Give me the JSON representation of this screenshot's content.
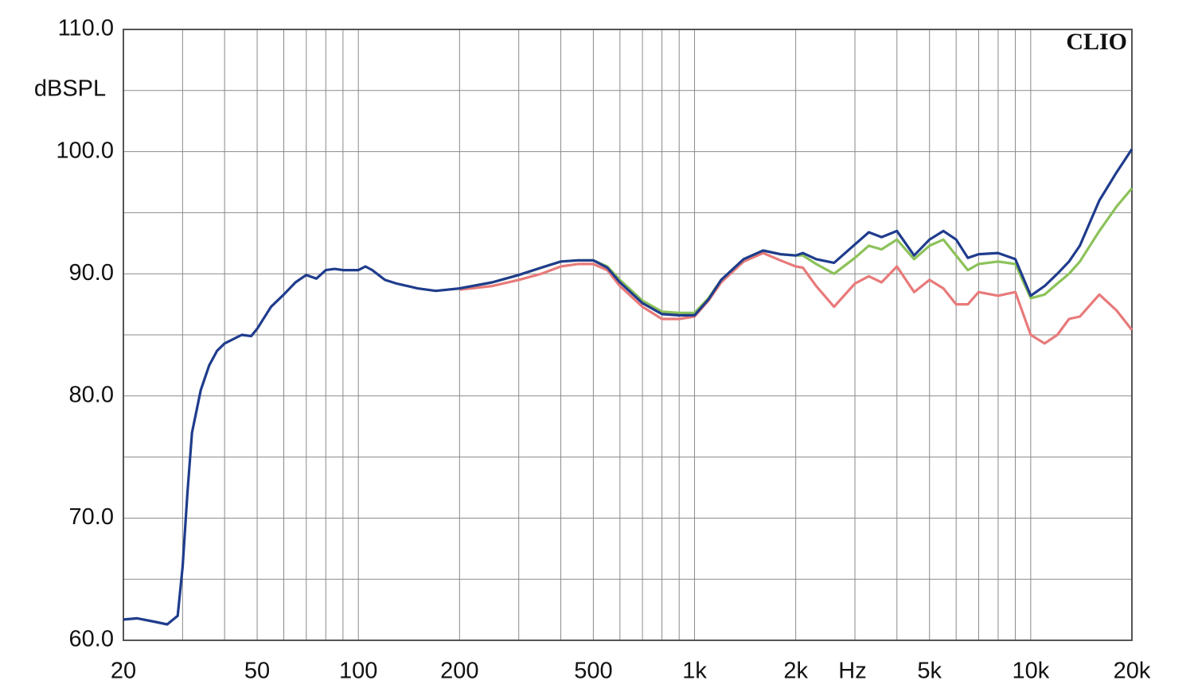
{
  "chart_data": {
    "type": "line",
    "y_label": "dBSPL",
    "x_label": "Hz",
    "annotation": "CLIO",
    "log_x": true,
    "grid": true,
    "xlim": [
      20,
      20000
    ],
    "ylim": [
      60,
      110
    ],
    "xticks": [
      20,
      50,
      100,
      200,
      500,
      {
        "value": 1000,
        "label": "1k"
      },
      {
        "value": 2000,
        "label": "2k"
      },
      {
        "value": 5000,
        "label": "5k"
      },
      {
        "value": 10000,
        "label": "10k"
      },
      {
        "value": 20000,
        "label": "20k"
      }
    ],
    "xminorticks": [
      30,
      40,
      60,
      70,
      80,
      90,
      300,
      400,
      600,
      700,
      800,
      900,
      3000,
      4000,
      6000,
      7000,
      8000,
      9000
    ],
    "yticks": [
      {
        "value": 60,
        "label": "60.0"
      },
      {
        "value": 70,
        "label": "70.0"
      },
      {
        "value": 80,
        "label": "80.0"
      },
      {
        "value": 90,
        "label": "90.0"
      },
      {
        "value": 100,
        "label": "100.0"
      },
      {
        "value": 110,
        "label": "110.0"
      }
    ],
    "yminorticks": [
      65,
      75,
      85,
      95,
      105
    ],
    "x": [
      20,
      22,
      25,
      27,
      29,
      30,
      31,
      32,
      34,
      36,
      38,
      40,
      45,
      48,
      50,
      55,
      60,
      65,
      70,
      75,
      80,
      85,
      90,
      100,
      105,
      110,
      120,
      130,
      140,
      150,
      170,
      200,
      250,
      300,
      350,
      400,
      450,
      500,
      550,
      600,
      700,
      800,
      900,
      1000,
      1100,
      1200,
      1400,
      1600,
      1800,
      2000,
      2100,
      2300,
      2600,
      3000,
      3300,
      3600,
      4000,
      4500,
      5000,
      5500,
      6000,
      6500,
      7000,
      8000,
      9000,
      10000,
      11000,
      12000,
      13000,
      14000,
      16000,
      18000,
      20000
    ],
    "series": [
      {
        "color": "#e87a7a",
        "values": [
          null,
          null,
          null,
          null,
          null,
          null,
          null,
          null,
          null,
          null,
          null,
          null,
          null,
          null,
          null,
          null,
          null,
          null,
          null,
          null,
          null,
          null,
          null,
          null,
          null,
          null,
          null,
          null,
          null,
          null,
          null,
          88.7,
          89.0,
          89.5,
          90.0,
          90.6,
          90.8,
          90.8,
          90.3,
          89.0,
          87.3,
          86.3,
          86.3,
          86.5,
          87.8,
          89.3,
          91.0,
          91.7,
          91.1,
          90.6,
          90.5,
          89.0,
          87.3,
          89.2,
          89.8,
          89.3,
          90.6,
          88.5,
          89.5,
          88.8,
          87.5,
          87.5,
          88.5,
          88.2,
          88.5,
          85.0,
          84.3,
          85.0,
          86.3,
          86.5,
          88.3,
          87.0,
          85.4
        ]
      },
      {
        "color": "#8cc25a",
        "values": [
          null,
          null,
          null,
          null,
          null,
          null,
          null,
          null,
          null,
          null,
          null,
          null,
          null,
          null,
          null,
          null,
          null,
          null,
          null,
          null,
          null,
          null,
          null,
          null,
          null,
          null,
          null,
          null,
          null,
          null,
          null,
          88.8,
          89.3,
          89.9,
          90.5,
          91.0,
          91.1,
          91.1,
          90.6,
          89.5,
          87.8,
          86.9,
          86.8,
          86.8,
          88.0,
          89.5,
          91.2,
          91.9,
          91.6,
          91.5,
          91.5,
          90.8,
          90.0,
          91.3,
          92.3,
          92.0,
          92.8,
          91.2,
          92.3,
          92.8,
          91.5,
          90.3,
          90.8,
          91.0,
          90.8,
          88.0,
          88.3,
          89.2,
          90.0,
          91.0,
          93.5,
          95.5,
          97.0
        ]
      },
      {
        "color": "#1f3c8c",
        "values": [
          61.7,
          61.8,
          61.5,
          61.3,
          62.0,
          66,
          72,
          77,
          80.5,
          82.5,
          83.7,
          84.3,
          85.0,
          84.9,
          85.5,
          87.3,
          88.3,
          89.3,
          89.9,
          89.6,
          90.3,
          90.4,
          90.3,
          90.3,
          90.6,
          90.3,
          89.5,
          89.2,
          89.0,
          88.8,
          88.6,
          88.8,
          89.3,
          89.9,
          90.5,
          91.0,
          91.1,
          91.1,
          90.5,
          89.3,
          87.6,
          86.7,
          86.6,
          86.6,
          87.9,
          89.5,
          91.2,
          91.9,
          91.6,
          91.5,
          91.7,
          91.2,
          90.9,
          92.4,
          93.4,
          93.0,
          93.5,
          91.5,
          92.8,
          93.5,
          92.8,
          91.3,
          91.6,
          91.7,
          91.2,
          88.2,
          89.0,
          90.0,
          91.0,
          92.3,
          96.0,
          98.3,
          100.2
        ]
      }
    ]
  }
}
